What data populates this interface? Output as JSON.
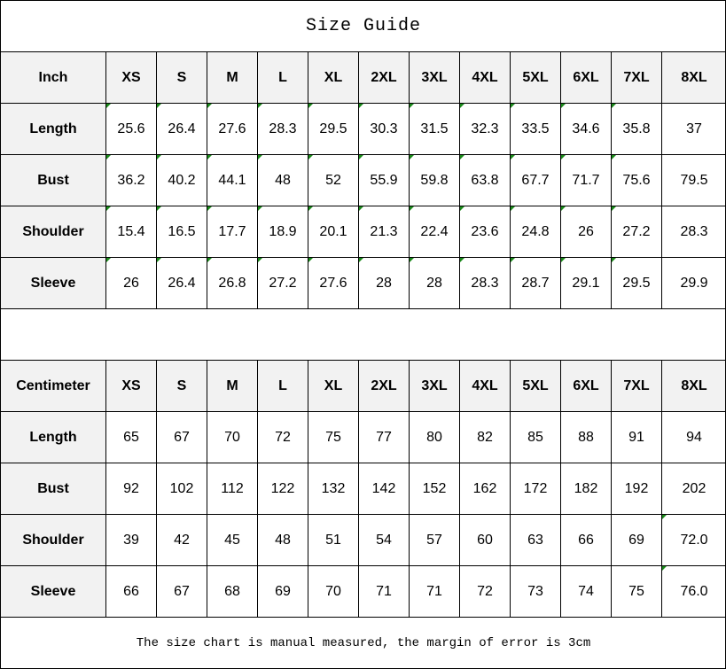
{
  "title": "Size Guide",
  "sizes": [
    "XS",
    "S",
    "M",
    "L",
    "XL",
    "2XL",
    "3XL",
    "4XL",
    "5XL",
    "6XL",
    "7XL",
    "8XL"
  ],
  "tables": [
    {
      "unit": "Inch",
      "rows": [
        {
          "label": "Length",
          "values": [
            "25.6",
            "26.4",
            "27.6",
            "28.3",
            "29.5",
            "30.3",
            "31.5",
            "32.3",
            "33.5",
            "34.6",
            "35.8",
            "37"
          ]
        },
        {
          "label": "Bust",
          "values": [
            "36.2",
            "40.2",
            "44.1",
            "48",
            "52",
            "55.9",
            "59.8",
            "63.8",
            "67.7",
            "71.7",
            "75.6",
            "79.5"
          ]
        },
        {
          "label": "Shoulder",
          "values": [
            "15.4",
            "16.5",
            "17.7",
            "18.9",
            "20.1",
            "21.3",
            "22.4",
            "23.6",
            "24.8",
            "26",
            "27.2",
            "28.3"
          ]
        },
        {
          "label": "Sleeve",
          "values": [
            "26",
            "26.4",
            "26.8",
            "27.2",
            "27.6",
            "28",
            "28",
            "28.3",
            "28.7",
            "29.1",
            "29.5",
            "29.9"
          ]
        }
      ]
    },
    {
      "unit": "Centimeter",
      "rows": [
        {
          "label": "Length",
          "values": [
            "65",
            "67",
            "70",
            "72",
            "75",
            "77",
            "80",
            "82",
            "85",
            "88",
            "91",
            "94"
          ]
        },
        {
          "label": "Bust",
          "values": [
            "92",
            "102",
            "112",
            "122",
            "132",
            "142",
            "152",
            "162",
            "172",
            "182",
            "192",
            "202"
          ]
        },
        {
          "label": "Shoulder",
          "values": [
            "39",
            "42",
            "45",
            "48",
            "51",
            "54",
            "57",
            "60",
            "63",
            "66",
            "69",
            "72.0"
          ]
        },
        {
          "label": "Sleeve",
          "values": [
            "66",
            "67",
            "68",
            "69",
            "70",
            "71",
            "71",
            "72",
            "73",
            "74",
            "75",
            "76.0"
          ]
        }
      ]
    }
  ],
  "footnote": "The size chart is manual measured, the margin of error is 3cm",
  "colors": {
    "header_bg": "#f2f2f2",
    "text_marker": "#1a8a1a"
  }
}
